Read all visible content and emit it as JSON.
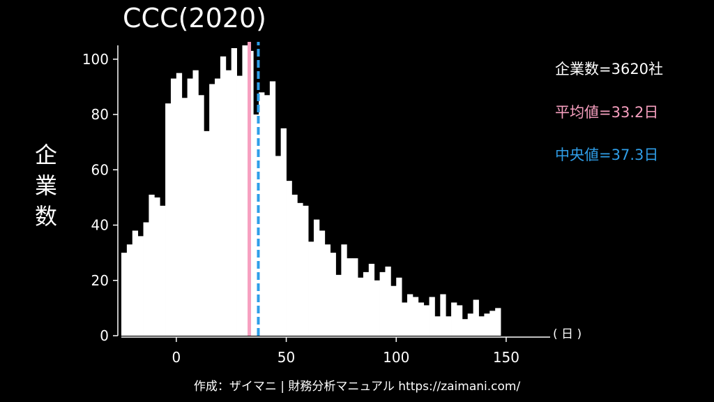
{
  "chart_data": {
    "type": "bar",
    "title": "CCC(2020)",
    "ylabel_chars": [
      "企",
      "業",
      "数"
    ],
    "x_unit": "( 日 )",
    "bin_width": 2.5,
    "x_start": -25,
    "values": [
      30,
      33,
      38,
      36,
      41,
      51,
      50,
      47,
      84,
      93,
      95,
      86,
      93,
      96,
      87,
      74,
      91,
      93,
      101,
      96,
      104,
      94,
      105,
      103,
      80,
      88,
      87,
      92,
      65,
      75,
      56,
      51,
      48,
      47,
      34,
      42,
      38,
      33,
      30,
      22,
      33,
      28,
      28,
      21,
      23,
      26,
      20,
      23,
      25,
      18,
      21,
      12,
      15,
      14,
      12,
      11,
      14,
      7,
      15,
      7,
      12,
      11,
      6,
      8,
      13,
      7,
      8,
      9,
      10
    ],
    "xlim": [
      -25,
      170
    ],
    "ylim": [
      0,
      105
    ],
    "xticks": [
      0,
      50,
      100,
      150
    ],
    "yticks": [
      0,
      20,
      40,
      60,
      80,
      100
    ],
    "mean": 33.2,
    "median": 37.3,
    "grid": false,
    "colors": {
      "bars": "#ffffff",
      "mean": "#f7a0c0",
      "median": "#2f9ee8",
      "axis": "#ffffff"
    }
  },
  "stats": {
    "count": "企業数=3620社",
    "mean": "平均値=33.2日",
    "median": "中央値=37.3日"
  },
  "credit": "作成：ザイマニ | 財務分析マニュアル https://zaimani.com/"
}
